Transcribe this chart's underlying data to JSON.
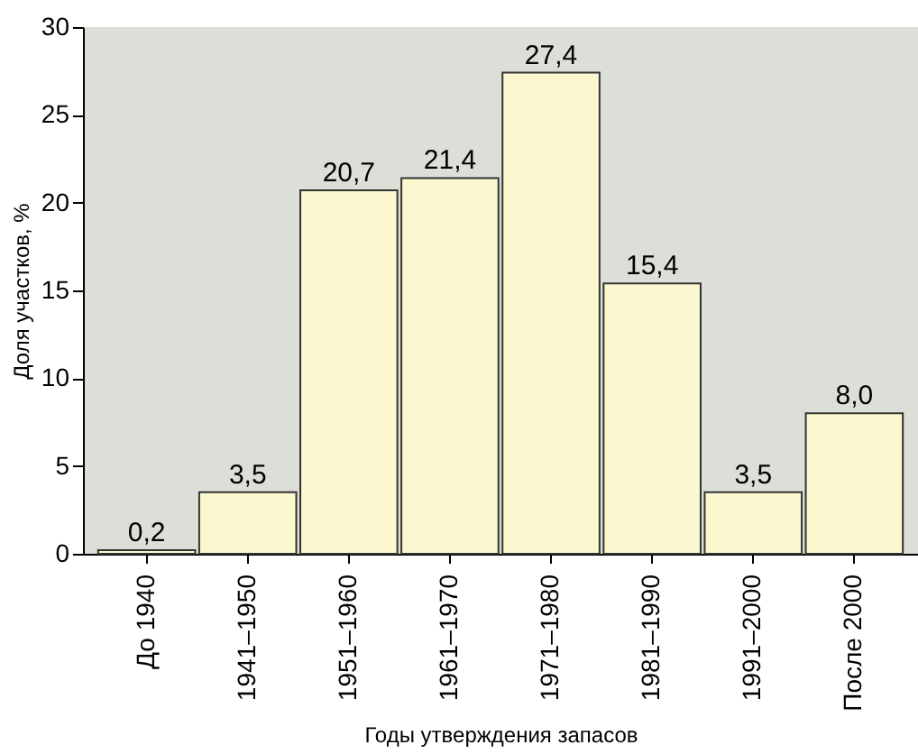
{
  "chart_data": {
    "type": "bar",
    "xlabel": "Годы утверждения запасов",
    "ylabel": "Доля участков, %",
    "categories": [
      "До 1940",
      "1941–1950",
      "1951–1960",
      "1961–1970",
      "1971–1980",
      "1981–1990",
      "1991–2000",
      "После 2000"
    ],
    "values": [
      0.2,
      3.5,
      20.7,
      21.4,
      27.4,
      15.4,
      3.5,
      8.0
    ],
    "value_labels": [
      "0,2",
      "3,5",
      "20,7",
      "21,4",
      "27,4",
      "15,4",
      "3,5",
      "8,0"
    ],
    "color": "#fbf8cf",
    "ylim": [
      0,
      30
    ],
    "yticks": [
      0,
      5,
      10,
      15,
      20,
      25,
      30
    ]
  }
}
